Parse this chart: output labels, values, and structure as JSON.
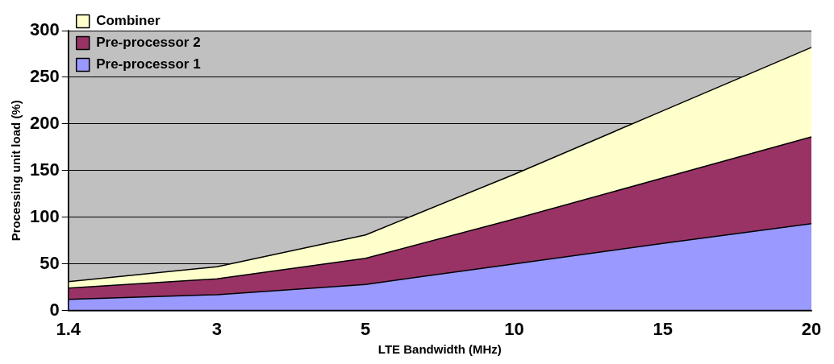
{
  "chart_data": {
    "type": "area",
    "stacked": true,
    "xlabel": "LTE Bandwidth (MHz)",
    "ylabel": "Processing unit load (%)",
    "categories": [
      "1.4",
      "3",
      "5",
      "10",
      "15",
      "20"
    ],
    "series": [
      {
        "name": "Pre-processor 1",
        "color": "#9999ff",
        "values": [
          12,
          17,
          28,
          50,
          72,
          93
        ]
      },
      {
        "name": "Pre-processor 2",
        "color": "#993366",
        "values": [
          12,
          17,
          28,
          48,
          70,
          93
        ]
      },
      {
        "name": "Combiner",
        "color": "#ffffcc",
        "values": [
          7,
          13,
          25,
          48,
          72,
          96
        ]
      }
    ],
    "ylim": [
      0,
      300
    ],
    "yticks": [
      0,
      50,
      100,
      150,
      200,
      250,
      300
    ],
    "grid": "y",
    "legend": "top left"
  }
}
